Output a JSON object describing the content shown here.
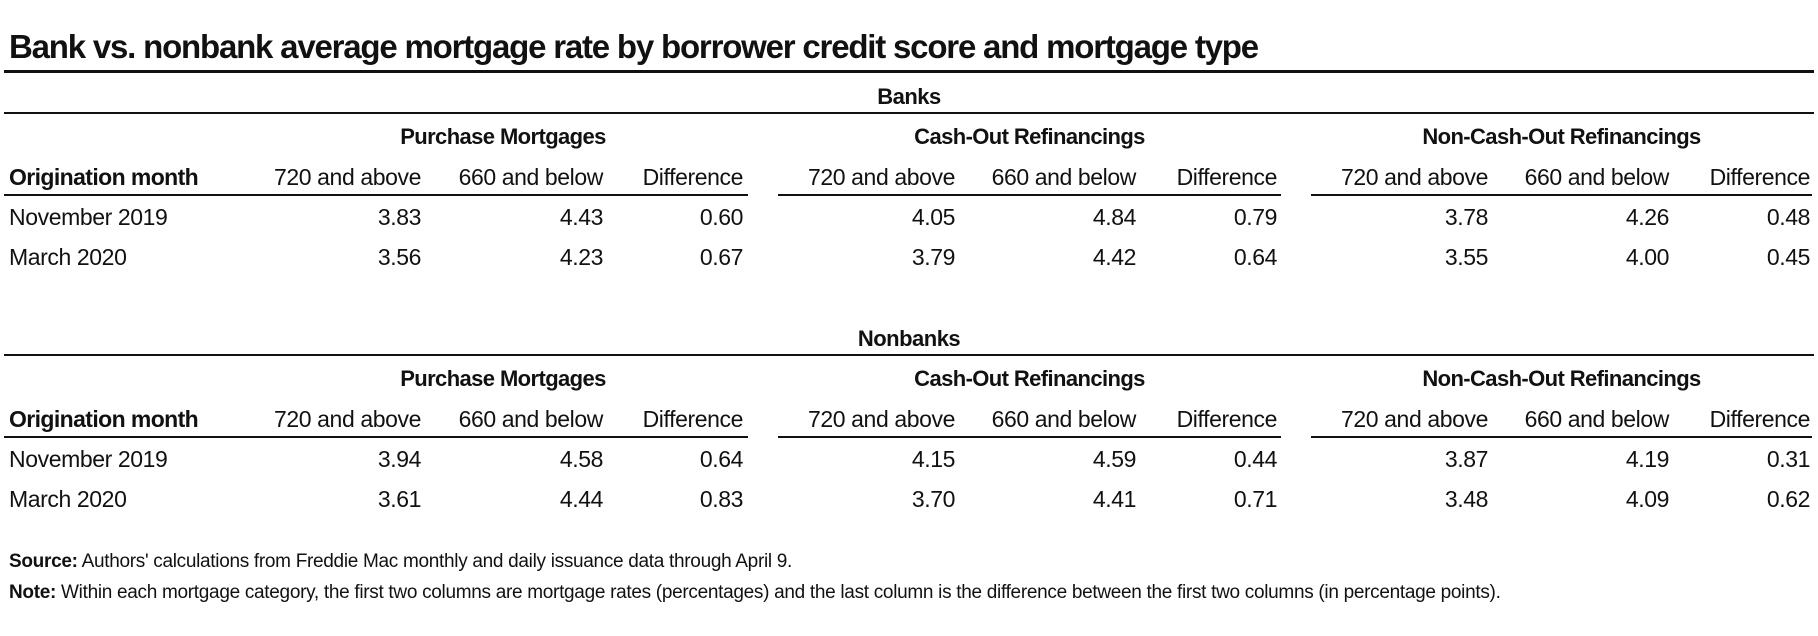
{
  "title": "Bank vs. nonbank average mortgage rate by borrower credit score and mortgage type",
  "row_header_label": "Origination month",
  "groups": [
    "Purchase Mortgages",
    "Cash-Out Refinancings",
    "Non-Cash-Out Refinancings"
  ],
  "subcolumns": [
    "720 and above",
    "660 and below",
    "Difference"
  ],
  "sections": [
    {
      "label": "Banks",
      "rows": [
        {
          "month": "November 2019",
          "values": [
            "3.83",
            "4.43",
            "0.60",
            "4.05",
            "4.84",
            "0.79",
            "3.78",
            "4.26",
            "0.48"
          ]
        },
        {
          "month": "March 2020",
          "values": [
            "3.56",
            "4.23",
            "0.67",
            "3.79",
            "4.42",
            "0.64",
            "3.55",
            "4.00",
            "0.45"
          ]
        }
      ]
    },
    {
      "label": "Nonbanks",
      "rows": [
        {
          "month": "November 2019",
          "values": [
            "3.94",
            "4.58",
            "0.64",
            "4.15",
            "4.59",
            "0.44",
            "3.87",
            "4.19",
            "0.31"
          ]
        },
        {
          "month": "March 2020",
          "values": [
            "3.61",
            "4.44",
            "0.83",
            "3.70",
            "4.41",
            "0.71",
            "3.48",
            "4.09",
            "0.62"
          ]
        }
      ]
    }
  ],
  "footer": {
    "source_label": "Source:",
    "source_text": " Authors' calculations from Freddie Mac monthly and daily issuance data through April 9.",
    "note_label": "Note:",
    "note_text": " Within each mortgage category, the first two columns are mortgage rates (percentages) and the last column is the difference between the first two columns (in percentage points)."
  },
  "chart_data": {
    "type": "table",
    "title": "Bank vs. nonbank average mortgage rate by borrower credit score and mortgage type",
    "columns": [
      "Origination month",
      "Purchase Mortgages: 720 and above",
      "Purchase Mortgages: 660 and below",
      "Purchase Mortgages: Difference",
      "Cash-Out Refinancings: 720 and above",
      "Cash-Out Refinancings: 660 and below",
      "Cash-Out Refinancings: Difference",
      "Non-Cash-Out Refinancings: 720 and above",
      "Non-Cash-Out Refinancings: 660 and below",
      "Non-Cash-Out Refinancings: Difference"
    ],
    "tables": [
      {
        "name": "Banks",
        "rows": [
          [
            "November 2019",
            3.83,
            4.43,
            0.6,
            4.05,
            4.84,
            0.79,
            3.78,
            4.26,
            0.48
          ],
          [
            "March 2020",
            3.56,
            4.23,
            0.67,
            3.79,
            4.42,
            0.64,
            3.55,
            4.0,
            0.45
          ]
        ]
      },
      {
        "name": "Nonbanks",
        "rows": [
          [
            "November 2019",
            3.94,
            4.58,
            0.64,
            4.15,
            4.59,
            0.44,
            3.87,
            4.19,
            0.31
          ],
          [
            "March 2020",
            3.61,
            4.44,
            0.83,
            3.7,
            4.41,
            0.71,
            3.48,
            4.09,
            0.62
          ]
        ]
      }
    ]
  }
}
